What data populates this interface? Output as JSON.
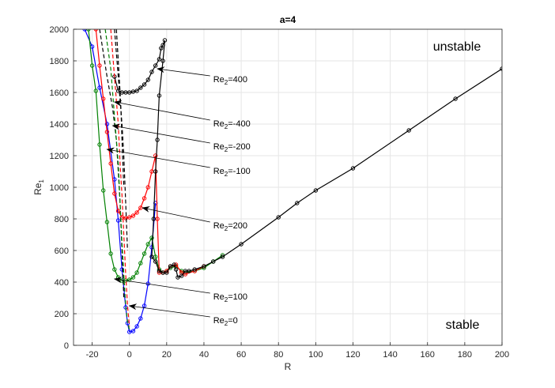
{
  "chart_data": {
    "type": "line",
    "title": "a=4",
    "xlabel": "R",
    "ylabel": "Re",
    "ylabel_sub": "1",
    "xlim": [
      -30,
      200
    ],
    "ylim": [
      0,
      2000
    ],
    "xticks": [
      -20,
      0,
      20,
      40,
      60,
      80,
      100,
      120,
      140,
      160,
      180,
      200
    ],
    "yticks": [
      0,
      200,
      400,
      600,
      800,
      1000,
      1200,
      1400,
      1600,
      1800,
      2000
    ],
    "grid": true,
    "region_labels": [
      {
        "text": "unstable",
        "position": "top-right"
      },
      {
        "text": "stable",
        "position": "bottom-right"
      }
    ],
    "colors": {
      "blue": "#0000ff",
      "green": "#008000",
      "red": "#ff0000",
      "black": "#000000"
    },
    "series": [
      {
        "label_prefix": "Re",
        "label_sub": "2",
        "label_suffix": "=0",
        "color": "#0000ff",
        "dash": false,
        "x": [
          -24,
          -20,
          -16,
          -12,
          -8,
          -6,
          -4,
          -2,
          -1,
          0,
          2,
          4,
          6,
          8,
          10,
          12,
          14
        ],
        "y": [
          2000,
          1890,
          1630,
          1400,
          1050,
          790,
          480,
          240,
          140,
          85,
          90,
          120,
          170,
          250,
          390,
          620,
          900
        ]
      },
      {
        "label_prefix": "Re",
        "label_sub": "2",
        "label_suffix": "=100",
        "color": "#008000",
        "dash": false,
        "x": [
          -22,
          -20,
          -18,
          -16,
          -14,
          -12,
          -10,
          -8,
          -6,
          -4,
          -2,
          0,
          2,
          4,
          6,
          8,
          10,
          12,
          14,
          16,
          18,
          20,
          22,
          25,
          28,
          30,
          35,
          40,
          45,
          50
        ],
        "y": [
          2000,
          1770,
          1610,
          1270,
          980,
          780,
          580,
          480,
          430,
          410,
          410,
          415,
          430,
          460,
          520,
          580,
          640,
          680,
          560,
          480,
          460,
          470,
          490,
          500,
          470,
          460,
          470,
          490,
          530,
          570
        ]
      },
      {
        "label_prefix": "Re",
        "label_sub": "2",
        "label_suffix": "=200",
        "color": "#ff0000",
        "dash": false,
        "x": [
          -18,
          -16,
          -14,
          -12,
          -10,
          -8,
          -6,
          -4,
          -2,
          0,
          2,
          4,
          6,
          8,
          10,
          12,
          14,
          15,
          16,
          18,
          20,
          22,
          25,
          28,
          30,
          35,
          40
        ],
        "y": [
          2000,
          1770,
          1560,
          1350,
          1150,
          960,
          850,
          810,
          805,
          810,
          820,
          840,
          870,
          930,
          1000,
          1100,
          1200,
          800,
          460,
          460,
          470,
          500,
          510,
          460,
          450,
          470,
          500
        ]
      },
      {
        "label_prefix": "Re",
        "label_sub": "2",
        "label_suffix": "=400",
        "color": "#000000",
        "dash": false,
        "x": [
          -8,
          -6,
          -4,
          -2,
          0,
          2,
          4,
          6,
          8,
          10,
          12,
          14,
          16,
          17,
          18,
          19,
          18,
          16,
          15,
          14,
          13,
          12,
          14,
          16,
          18,
          20,
          22,
          24,
          25,
          26,
          28,
          30,
          32,
          35,
          40,
          45,
          50,
          60,
          80,
          90,
          100,
          120,
          150,
          175,
          200
        ],
        "y": [
          1700,
          1610,
          1600,
          1600,
          1600,
          1605,
          1610,
          1630,
          1650,
          1680,
          1730,
          1770,
          1810,
          1880,
          1900,
          1930,
          1800,
          1580,
          1300,
          1100,
          800,
          560,
          530,
          470,
          460,
          460,
          500,
          510,
          480,
          430,
          440,
          470,
          470,
          480,
          500,
          530,
          560,
          640,
          810,
          900,
          980,
          1120,
          1360,
          1560,
          1750
        ]
      },
      {
        "label_prefix": "Re",
        "label_sub": "2",
        "label_suffix": "=-100",
        "color": "#000000",
        "dash": true,
        "x": [
          -16,
          -12,
          -9,
          -7,
          -6,
          -5,
          -4,
          -3
        ],
        "y": [
          2000,
          1700,
          1500,
          1300,
          1100,
          900,
          600,
          300
        ]
      },
      {
        "label_prefix": "Re",
        "label_sub": "2",
        "label_suffix": "=-200",
        "color": "#000000",
        "dash": true,
        "x": [
          -8,
          -6,
          -5,
          -4,
          -3,
          -2,
          -1
        ],
        "y": [
          2000,
          1700,
          1550,
          1400,
          1200,
          900,
          600
        ]
      },
      {
        "label_prefix": "Re",
        "label_sub": "2",
        "label_suffix": "=-400",
        "color": "#000000",
        "dash": true,
        "x": [
          -7,
          -6,
          -5,
          -4.5,
          -4,
          -3
        ],
        "y": [
          2000,
          1800,
          1600,
          1480,
          1300,
          1000
        ]
      },
      {
        "label_prefix": "",
        "label_sub": "",
        "label_suffix": "",
        "color": "#008000",
        "dash": true,
        "x": [
          -13,
          -10,
          -8,
          -6,
          -5,
          -4,
          -3,
          -2,
          -1,
          0
        ],
        "y": [
          2000,
          1750,
          1450,
          1150,
          900,
          650,
          450,
          250,
          150,
          100
        ]
      },
      {
        "label_prefix": "",
        "label_sub": "",
        "label_suffix": "",
        "color": "#ff0000",
        "dash": true,
        "x": [
          -10,
          -8,
          -6,
          -5,
          -4,
          -3,
          -2,
          -1,
          0
        ],
        "y": [
          2000,
          1700,
          1400,
          1150,
          950,
          700,
          450,
          250,
          120
        ]
      }
    ],
    "annotations": [
      {
        "prefix": "Re",
        "sub": "2",
        "suffix": "=400",
        "text_xy": [
          45,
          1665
        ],
        "arrow_to": [
          15,
          1750
        ]
      },
      {
        "prefix": "Re",
        "sub": "2",
        "suffix": "=-400",
        "text_xy": [
          45,
          1385
        ],
        "arrow_to": [
          -8,
          1540
        ]
      },
      {
        "prefix": "Re",
        "sub": "2",
        "suffix": "=-200",
        "text_xy": [
          45,
          1240
        ],
        "arrow_to": [
          -9,
          1390
        ]
      },
      {
        "prefix": "Re",
        "sub": "2",
        "suffix": "=-100",
        "text_xy": [
          45,
          1085
        ],
        "arrow_to": [
          -12,
          1240
        ]
      },
      {
        "prefix": "Re",
        "sub": "2",
        "suffix": "=200",
        "text_xy": [
          45,
          740
        ],
        "arrow_to": [
          7,
          870
        ]
      },
      {
        "prefix": "Re",
        "sub": "2",
        "suffix": "=100",
        "text_xy": [
          45,
          290
        ],
        "arrow_to": [
          -8,
          420
        ]
      },
      {
        "prefix": "Re",
        "sub": "2",
        "suffix": "=0",
        "text_xy": [
          45,
          140
        ],
        "arrow_to": [
          0,
          250
        ]
      }
    ]
  }
}
